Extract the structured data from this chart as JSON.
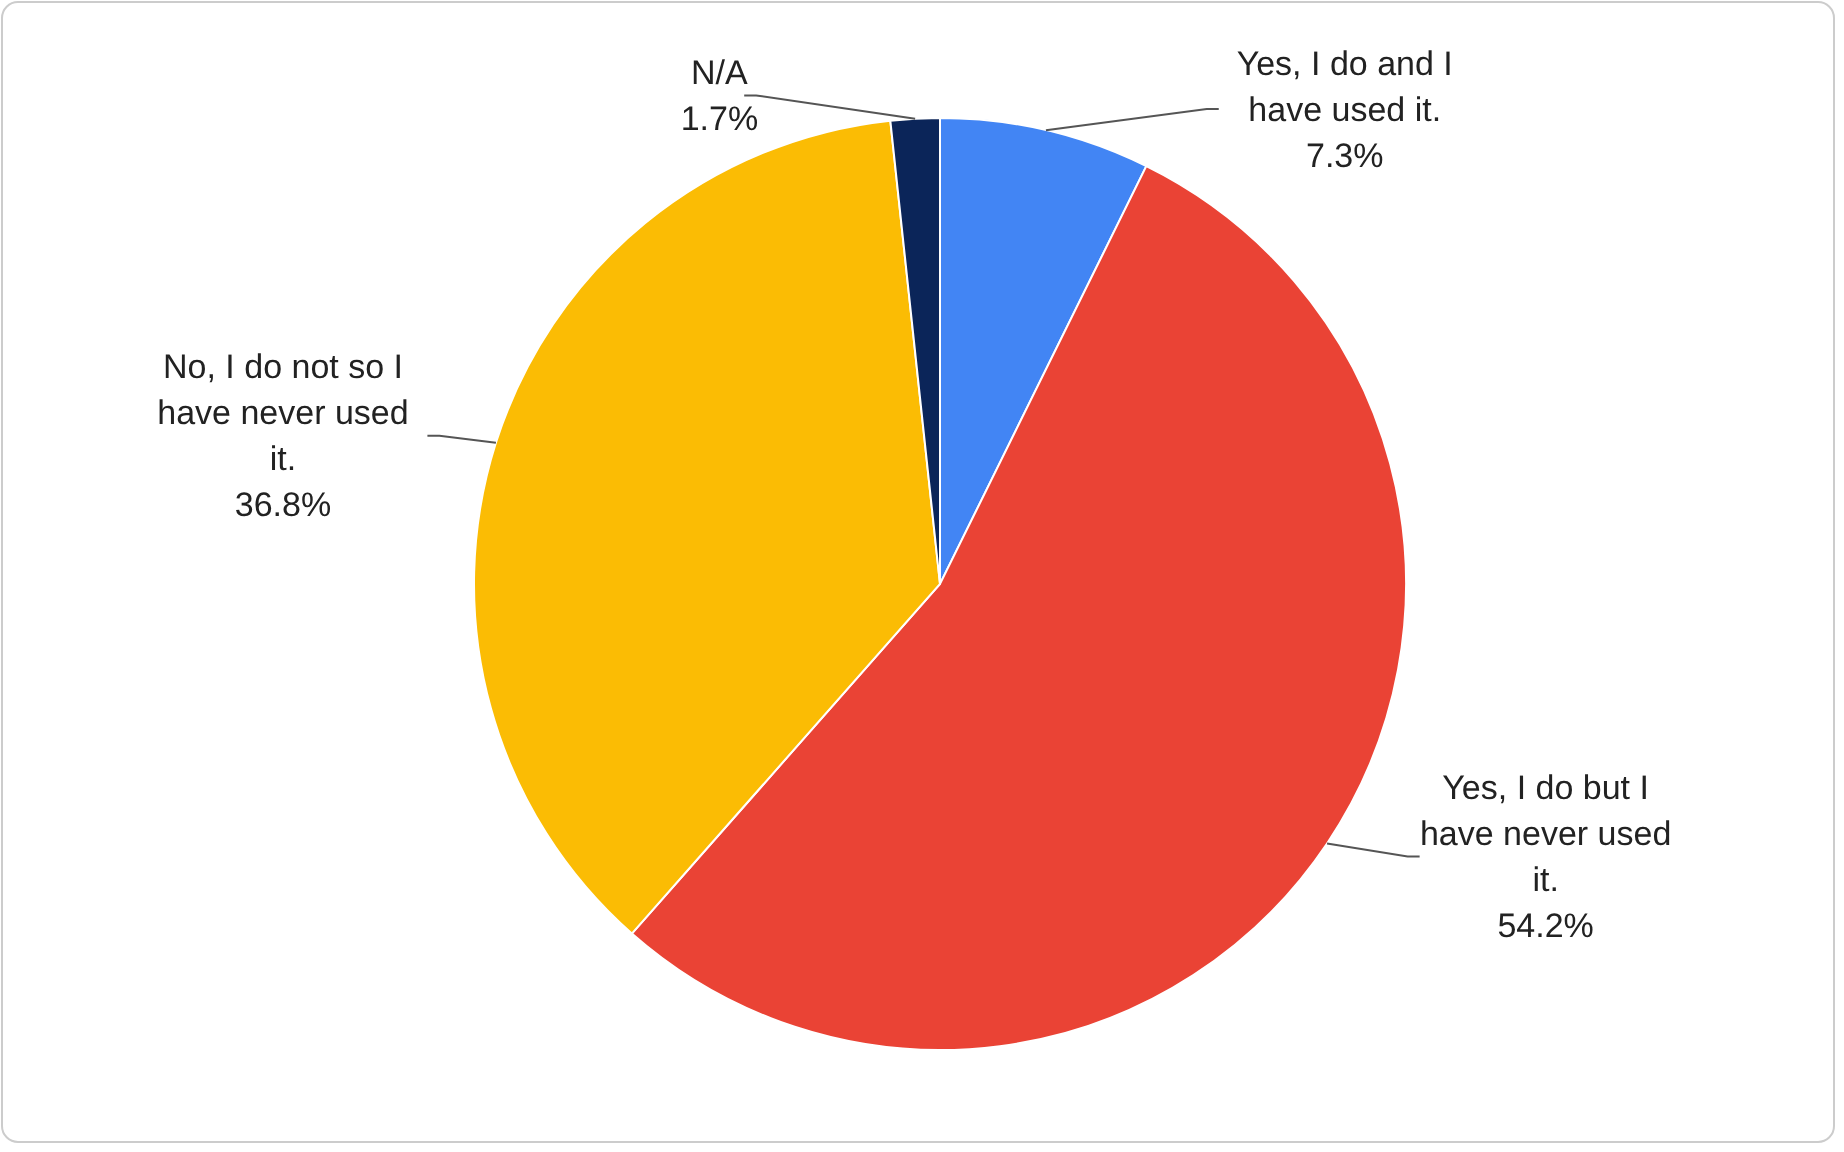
{
  "chart_data": {
    "type": "pie",
    "categories": [
      "Yes, I do and I have used it.",
      "Yes, I do but I have never used it.",
      "No, I do not so I have never used it.",
      "N/A"
    ],
    "values": [
      7.3,
      54.2,
      36.8,
      1.7
    ],
    "colors": [
      "#4285f4",
      "#ea4335",
      "#fbbc04",
      "#0b2559"
    ],
    "value_labels": [
      "7.3%",
      "54.2%",
      "36.8%",
      "1.7%"
    ]
  }
}
